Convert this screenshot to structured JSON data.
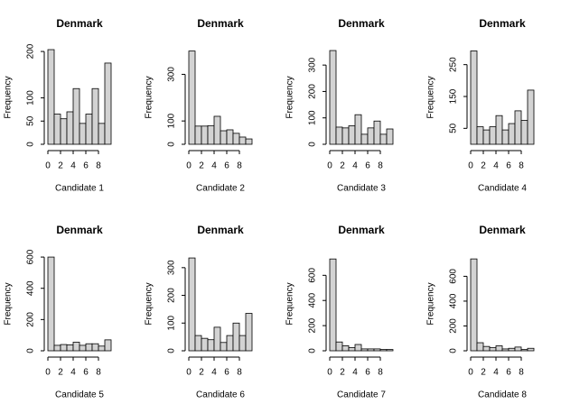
{
  "chart_data": [
    {
      "type": "histogram",
      "title": "Denmark",
      "x_label": "Candidate 1",
      "y_label": "Frequency",
      "color": "#d3d3d3",
      "bins": [
        0,
        1,
        2,
        3,
        4,
        5,
        6,
        7,
        8,
        9,
        10
      ],
      "values": [
        204,
        65,
        55,
        70,
        120,
        45,
        65,
        120,
        45,
        175
      ],
      "xlim": [
        0,
        10
      ],
      "xticks": [
        0,
        2,
        4,
        6,
        8
      ],
      "ylim": [
        0,
        206
      ],
      "yticks": [
        0,
        50,
        100,
        200
      ]
    },
    {
      "type": "histogram",
      "title": "Denmark",
      "x_label": "Candidate 2",
      "y_label": "Frequency",
      "color": "#d3d3d3",
      "bins": [
        0,
        1,
        2,
        3,
        4,
        5,
        6,
        7,
        8,
        9,
        10
      ],
      "values": [
        400,
        78,
        78,
        80,
        120,
        58,
        62,
        47,
        31,
        23
      ],
      "xlim": [
        0,
        10
      ],
      "xticks": [
        0,
        2,
        4,
        6,
        8
      ],
      "ylim": [
        0,
        410
      ],
      "yticks": [
        0,
        100,
        300
      ]
    },
    {
      "type": "histogram",
      "title": "Denmark",
      "x_label": "Candidate 3",
      "y_label": "Frequency",
      "color": "#d3d3d3",
      "bins": [
        0,
        1,
        2,
        3,
        4,
        5,
        6,
        7,
        8,
        9,
        10
      ],
      "values": [
        355,
        65,
        62,
        70,
        112,
        38,
        62,
        88,
        38,
        58
      ],
      "xlim": [
        0,
        10
      ],
      "xticks": [
        0,
        2,
        4,
        6,
        8
      ],
      "ylim": [
        0,
        362
      ],
      "yticks": [
        0,
        100,
        200,
        300
      ]
    },
    {
      "type": "histogram",
      "title": "Denmark",
      "x_label": "Candidate 4",
      "y_label": "Frequency",
      "color": "#d3d3d3",
      "bins": [
        0,
        1,
        2,
        3,
        4,
        5,
        6,
        7,
        8,
        9,
        10
      ],
      "values": [
        293,
        55,
        45,
        55,
        90,
        45,
        65,
        105,
        75,
        170
      ],
      "xlim": [
        0,
        10
      ],
      "xticks": [
        0,
        2,
        4,
        6,
        8
      ],
      "ylim": [
        0,
        300
      ],
      "yticks": [
        50,
        150,
        250
      ]
    },
    {
      "type": "histogram",
      "title": "Denmark",
      "x_label": "Candidate 5",
      "y_label": "Frequency",
      "color": "#d3d3d3",
      "bins": [
        0,
        1,
        2,
        3,
        4,
        5,
        6,
        7,
        8,
        9,
        10
      ],
      "values": [
        600,
        35,
        40,
        38,
        55,
        35,
        45,
        45,
        30,
        70
      ],
      "xlim": [
        0,
        10
      ],
      "xticks": [
        0,
        2,
        4,
        6,
        8
      ],
      "ylim": [
        0,
        612
      ],
      "yticks": [
        0,
        200,
        400,
        600
      ]
    },
    {
      "type": "histogram",
      "title": "Denmark",
      "x_label": "Candidate 6",
      "y_label": "Frequency",
      "color": "#d3d3d3",
      "bins": [
        0,
        1,
        2,
        3,
        4,
        5,
        6,
        7,
        8,
        9,
        10
      ],
      "values": [
        335,
        55,
        45,
        40,
        85,
        30,
        55,
        100,
        55,
        135
      ],
      "xlim": [
        0,
        10
      ],
      "xticks": [
        0,
        2,
        4,
        6,
        8
      ],
      "ylim": [
        0,
        345
      ],
      "yticks": [
        0,
        100,
        200,
        300
      ]
    },
    {
      "type": "histogram",
      "title": "Denmark",
      "x_label": "Candidate 7",
      "y_label": "Frequency",
      "color": "#d3d3d3",
      "bins": [
        0,
        1,
        2,
        3,
        4,
        5,
        6,
        7,
        8,
        9,
        10
      ],
      "values": [
        730,
        70,
        40,
        25,
        50,
        15,
        15,
        15,
        10,
        10
      ],
      "xlim": [
        0,
        10
      ],
      "xticks": [
        0,
        2,
        4,
        6,
        8
      ],
      "ylim": [
        0,
        760
      ],
      "yticks": [
        0,
        200,
        400,
        600
      ]
    },
    {
      "type": "histogram",
      "title": "Denmark",
      "x_label": "Candidate 8",
      "y_label": "Frequency",
      "color": "#d3d3d3",
      "bins": [
        0,
        1,
        2,
        3,
        4,
        5,
        6,
        7,
        8,
        9,
        10
      ],
      "values": [
        740,
        65,
        35,
        25,
        40,
        15,
        20,
        30,
        10,
        20
      ],
      "xlim": [
        0,
        10
      ],
      "xticks": [
        0,
        2,
        4,
        6,
        8
      ],
      "ylim": [
        0,
        770
      ],
      "yticks": [
        0,
        200,
        400,
        600
      ]
    }
  ]
}
